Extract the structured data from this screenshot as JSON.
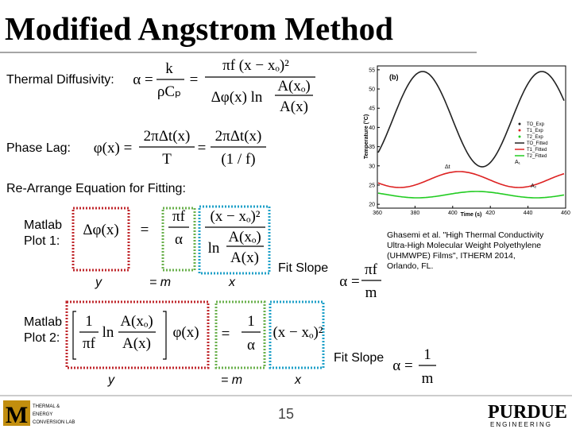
{
  "title": "Modified Angstrom Method",
  "labels": {
    "thermal_diffusivity": "Thermal Diffusivity:",
    "phase_lag": "Phase Lag:",
    "rearrange": "Re-Arrange Equation for Fitting:",
    "plot1": [
      "Matlab",
      "Plot 1:"
    ],
    "plot2": [
      "Matlab",
      "Plot 2:"
    ]
  },
  "eq_diffusivity": {
    "lhs": "α =",
    "f1_num": "k",
    "f1_den": "ρCₚ",
    "eq": "=",
    "f2_num": "πf  (x − xₒ)²",
    "f2_den": "Δφ(x)   ln",
    "f3_num": "A(xₒ)",
    "f3_den": "A(x)"
  },
  "eq_phase": {
    "lhs": "φ(x) =",
    "f1_num": "2πΔt(x)",
    "f1_den": "T",
    "eq": "=",
    "f2_num": "2πΔt(x)",
    "f2_den": "(1 / f)"
  },
  "eq_plot1": {
    "y": "Δφ(x)",
    "eq": "=",
    "m_num": "πf",
    "m_den": "α",
    "x_num": "(x − xₒ)²",
    "x_ln": "ln",
    "x_den_num": "A(xₒ)",
    "x_den_den": "A(x)",
    "y_label": "y",
    "m_label": "=  m",
    "x_label": "x",
    "fit": "Fit Slope",
    "alpha": "α =",
    "alpha_num": "πf",
    "alpha_den": "m"
  },
  "eq_plot2": {
    "c_num": "1",
    "c_den": "πf",
    "ln": "ln",
    "a_num": "A(xₒ)",
    "a_den": "A(x)",
    "phi": "φ(x)",
    "eq": "=",
    "m_num": "1",
    "m_den": "α",
    "x": "(x − xₒ)²",
    "y_label": "y",
    "m_label": "=  m",
    "x_label": "x",
    "fit": "Fit Slope",
    "alpha": "α =",
    "alpha_num": "1",
    "alpha_den": "m"
  },
  "citation": [
    "Ghasemi et al. \"High Thermal Conductivity",
    "Ultra-High Molecular Weight Polyethylene",
    "(UHMWPE) Films\", ITHERM 2014,",
    "Orlando, FL."
  ],
  "inset": {
    "panel": "(b)",
    "xlabel": "Time (s)",
    "ylabel": "Temperature (°C)",
    "xlim": [
      360,
      460
    ],
    "xticks": [
      360,
      380,
      400,
      420,
      440,
      460
    ],
    "ylim": [
      19,
      56
    ],
    "yticks": [
      20,
      25,
      30,
      35,
      40,
      45,
      50,
      55
    ],
    "legend": [
      "TO_Exp",
      "T1_Exp",
      "T2_Exp",
      "TO_Fitted",
      "T1_Fitted",
      "T2_Fitted"
    ],
    "annotations": [
      "Δt",
      "A₁",
      "A₂"
    ]
  },
  "page_number": "15",
  "logo_left": {
    "letter": "M",
    "lines": [
      "THERMAL &",
      "ENERGY",
      "CONVERSION LAB"
    ]
  },
  "logo_right": {
    "name": "PURDUE",
    "sub": "ENGINEERING"
  }
}
